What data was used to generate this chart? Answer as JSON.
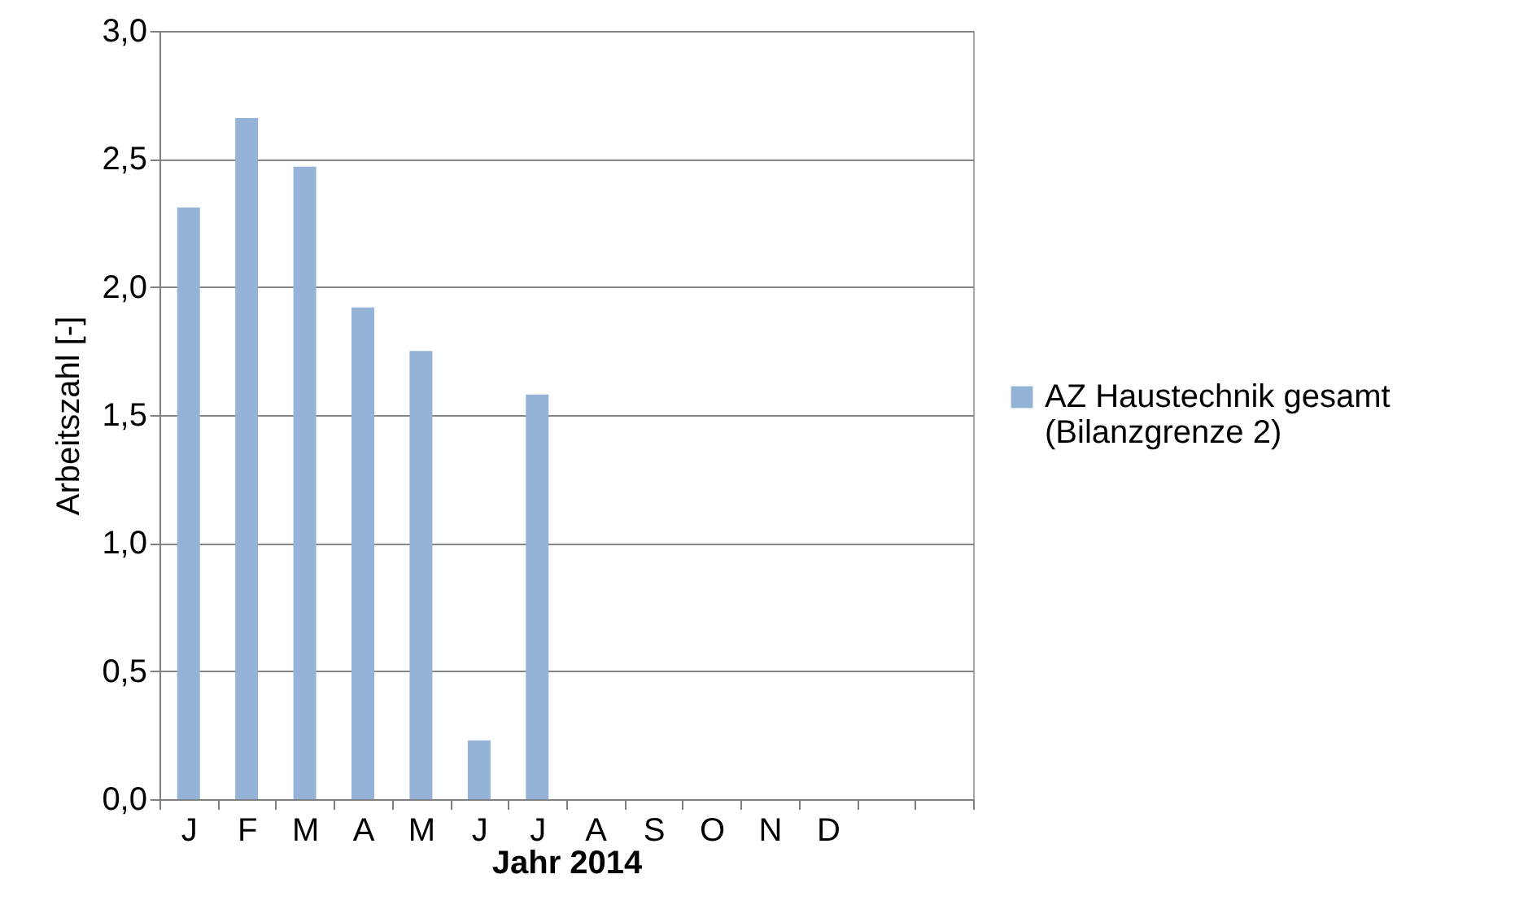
{
  "chart_data": {
    "type": "bar",
    "xlabel": "Jahr 2014",
    "ylabel": "Arbeitszahl [-]",
    "categories": [
      "J",
      "F",
      "M",
      "A",
      "M",
      "J",
      "J",
      "A",
      "S",
      "O",
      "N",
      "D",
      null,
      null
    ],
    "series": [
      {
        "name": "AZ Haustechnik gesamt (Bilanzgrenze 2)",
        "color": "#95b3d7",
        "values": [
          2.31,
          2.66,
          2.47,
          1.92,
          1.75,
          0.23,
          1.58,
          null,
          null,
          null,
          null,
          null,
          null,
          null
        ]
      }
    ],
    "ylim": [
      0,
      3
    ],
    "yticks": [
      {
        "value": 0,
        "label": "0,0"
      },
      {
        "value": 0.5,
        "label": "0,5"
      },
      {
        "value": 1,
        "label": "1,0"
      },
      {
        "value": 1.5,
        "label": "1,5"
      },
      {
        "value": 2,
        "label": "2,0"
      },
      {
        "value": 2.5,
        "label": "2,5"
      },
      {
        "value": 3,
        "label": "3,0"
      }
    ],
    "grid": "y",
    "legend": "right"
  }
}
